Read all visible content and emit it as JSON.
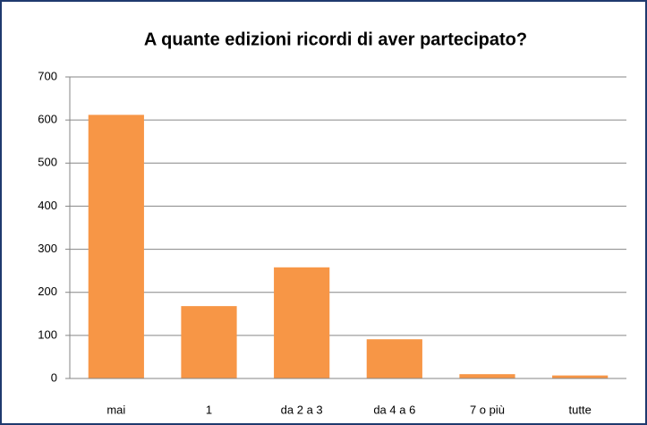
{
  "chart_data": {
    "type": "bar",
    "title": "A quante edizioni ricordi di aver partecipato?",
    "categories": [
      "mai",
      "1",
      "da 2 a 3",
      "da 4 a 6",
      "7 o più",
      "tutte"
    ],
    "values": [
      612,
      168,
      258,
      91,
      10,
      7
    ],
    "color": "#f79646",
    "ylim": [
      0,
      700
    ],
    "yticks": [
      0,
      100,
      200,
      300,
      400,
      500,
      600,
      700
    ],
    "grid": true
  }
}
